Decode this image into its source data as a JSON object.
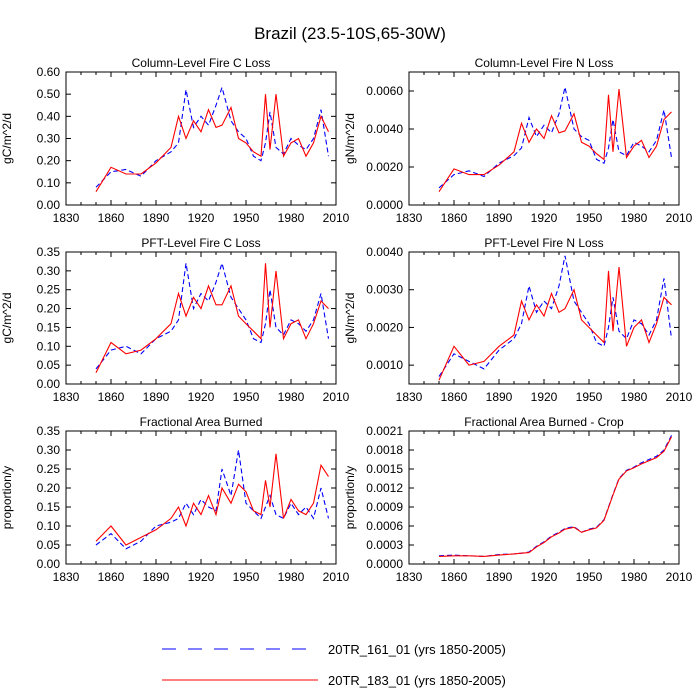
{
  "figure_title": "Brazil (23.5-10S,65-30W)",
  "colors": {
    "series_a": "#0000ff",
    "series_b": "#ff0000",
    "axis": "#000000"
  },
  "legend": [
    {
      "label": "20TR_161_01 (yrs 1850-2005)",
      "style": "dashed",
      "color": "#0000ff"
    },
    {
      "label": "20TR_183_01 (yrs 1850-2005)",
      "style": "solid",
      "color": "#ff0000"
    }
  ],
  "chart_data": [
    {
      "type": "line",
      "title": "Column-Level Fire C Loss",
      "ylabel": "gC/m^2/d",
      "xlim": [
        1830,
        2010
      ],
      "xticks": [
        "1830",
        "1860",
        "1890",
        "1920",
        "1950",
        "1980",
        "2010"
      ],
      "ylim": [
        0,
        0.6
      ],
      "yticks": [
        "0.00",
        "0.10",
        "0.20",
        "0.30",
        "0.40",
        "0.50",
        "0.60"
      ],
      "x": [
        1850,
        1860,
        1870,
        1880,
        1890,
        1900,
        1905,
        1910,
        1915,
        1920,
        1925,
        1930,
        1934,
        1940,
        1945,
        1950,
        1955,
        1960,
        1963,
        1966,
        1970,
        1975,
        1980,
        1985,
        1990,
        1995,
        2000,
        2005
      ],
      "series": [
        {
          "name": "20TR_161_01 (yrs 1850-2005)",
          "values": [
            0.08,
            0.15,
            0.16,
            0.13,
            0.2,
            0.24,
            0.28,
            0.52,
            0.35,
            0.4,
            0.36,
            0.45,
            0.53,
            0.38,
            0.33,
            0.3,
            0.22,
            0.2,
            0.28,
            0.42,
            0.26,
            0.23,
            0.3,
            0.27,
            0.25,
            0.3,
            0.43,
            0.22
          ]
        },
        {
          "name": "20TR_183_01 (yrs 1850-2005)",
          "values": [
            0.06,
            0.17,
            0.14,
            0.14,
            0.19,
            0.26,
            0.4,
            0.3,
            0.38,
            0.33,
            0.43,
            0.35,
            0.36,
            0.44,
            0.3,
            0.28,
            0.24,
            0.22,
            0.5,
            0.25,
            0.5,
            0.22,
            0.28,
            0.3,
            0.22,
            0.28,
            0.4,
            0.33
          ]
        }
      ]
    },
    {
      "type": "line",
      "title": "Column-Level Fire N Loss",
      "ylabel": "gN/m^2/d",
      "xlim": [
        1830,
        2010
      ],
      "xticks": [
        "1830",
        "1860",
        "1890",
        "1920",
        "1950",
        "1980",
        "2010"
      ],
      "ylim": [
        0,
        0.007
      ],
      "yticks": [
        "0.0000",
        "0.0020",
        "0.0040",
        "0.0060"
      ],
      "ytick_values": [
        0,
        0.002,
        0.004,
        0.006
      ],
      "x": [
        1850,
        1860,
        1870,
        1880,
        1890,
        1900,
        1905,
        1910,
        1915,
        1920,
        1925,
        1930,
        1934,
        1940,
        1945,
        1950,
        1955,
        1960,
        1963,
        1966,
        1970,
        1975,
        1980,
        1985,
        1990,
        1995,
        2000,
        2005
      ],
      "series": [
        {
          "name": "20TR_161_01 (yrs 1850-2005)",
          "values": [
            0.0009,
            0.0016,
            0.0018,
            0.0015,
            0.0022,
            0.0026,
            0.003,
            0.0046,
            0.0036,
            0.0042,
            0.0038,
            0.0048,
            0.0062,
            0.004,
            0.0036,
            0.0034,
            0.0024,
            0.0022,
            0.003,
            0.0045,
            0.0028,
            0.0026,
            0.0033,
            0.0031,
            0.0028,
            0.0034,
            0.005,
            0.0025
          ]
        },
        {
          "name": "20TR_183_01 (yrs 1850-2005)",
          "values": [
            0.0007,
            0.0019,
            0.0016,
            0.0016,
            0.0021,
            0.0028,
            0.0043,
            0.0033,
            0.004,
            0.0035,
            0.0047,
            0.0038,
            0.0039,
            0.0048,
            0.0033,
            0.0031,
            0.0027,
            0.0024,
            0.0058,
            0.0028,
            0.0061,
            0.0025,
            0.0031,
            0.0034,
            0.0025,
            0.0031,
            0.0045,
            0.0049
          ]
        }
      ]
    },
    {
      "type": "line",
      "title": "PFT-Level Fire C Loss",
      "ylabel": "gC/m^2/d",
      "xlim": [
        1830,
        2010
      ],
      "xticks": [
        "1830",
        "1860",
        "1890",
        "1920",
        "1950",
        "1980",
        "2010"
      ],
      "ylim": [
        0,
        0.35
      ],
      "yticks": [
        "0.00",
        "0.05",
        "0.10",
        "0.15",
        "0.20",
        "0.25",
        "0.30",
        "0.35"
      ],
      "x": [
        1850,
        1860,
        1870,
        1880,
        1890,
        1900,
        1905,
        1910,
        1915,
        1920,
        1925,
        1930,
        1934,
        1940,
        1945,
        1950,
        1955,
        1960,
        1963,
        1966,
        1970,
        1975,
        1980,
        1985,
        1990,
        1995,
        2000,
        2005
      ],
      "series": [
        {
          "name": "20TR_161_01 (yrs 1850-2005)",
          "values": [
            0.04,
            0.09,
            0.1,
            0.08,
            0.12,
            0.14,
            0.17,
            0.32,
            0.2,
            0.24,
            0.22,
            0.27,
            0.32,
            0.23,
            0.2,
            0.17,
            0.12,
            0.11,
            0.16,
            0.25,
            0.15,
            0.13,
            0.17,
            0.16,
            0.14,
            0.17,
            0.24,
            0.12
          ]
        },
        {
          "name": "20TR_183_01 (yrs 1850-2005)",
          "values": [
            0.03,
            0.11,
            0.08,
            0.09,
            0.12,
            0.16,
            0.24,
            0.18,
            0.23,
            0.2,
            0.26,
            0.21,
            0.21,
            0.26,
            0.18,
            0.16,
            0.14,
            0.12,
            0.32,
            0.15,
            0.3,
            0.12,
            0.16,
            0.17,
            0.12,
            0.16,
            0.22,
            0.2
          ]
        }
      ]
    },
    {
      "type": "line",
      "title": "PFT-Level Fire N Loss",
      "ylabel": "gN/m^2/d",
      "xlim": [
        1830,
        2010
      ],
      "xticks": [
        "1830",
        "1860",
        "1890",
        "1920",
        "1950",
        "1980",
        "2010"
      ],
      "ylim": [
        0.0005,
        0.004
      ],
      "yticks": [
        "0.0010",
        "0.0020",
        "0.0030",
        "0.0040"
      ],
      "ytick_values": [
        0.001,
        0.002,
        0.003,
        0.004
      ],
      "x": [
        1850,
        1860,
        1870,
        1880,
        1890,
        1900,
        1905,
        1910,
        1915,
        1920,
        1925,
        1930,
        1934,
        1940,
        1945,
        1950,
        1955,
        1960,
        1963,
        1966,
        1970,
        1975,
        1980,
        1985,
        1990,
        1995,
        2000,
        2005
      ],
      "series": [
        {
          "name": "20TR_161_01 (yrs 1850-2005)",
          "values": [
            0.0007,
            0.0013,
            0.0011,
            0.0009,
            0.0014,
            0.0017,
            0.0021,
            0.0031,
            0.0024,
            0.0027,
            0.0025,
            0.0031,
            0.0039,
            0.0027,
            0.0024,
            0.0021,
            0.0016,
            0.0015,
            0.002,
            0.0028,
            0.0019,
            0.0017,
            0.0022,
            0.0021,
            0.0018,
            0.0022,
            0.0033,
            0.0017
          ]
        },
        {
          "name": "20TR_183_01 (yrs 1850-2005)",
          "values": [
            0.0006,
            0.0015,
            0.001,
            0.0011,
            0.0015,
            0.0018,
            0.0027,
            0.0022,
            0.0026,
            0.0023,
            0.0029,
            0.0024,
            0.0025,
            0.003,
            0.0022,
            0.002,
            0.0018,
            0.0016,
            0.0035,
            0.0019,
            0.0036,
            0.0015,
            0.002,
            0.0022,
            0.0016,
            0.0021,
            0.0028,
            0.0026
          ]
        }
      ]
    },
    {
      "type": "line",
      "title": "Fractional Area Burned",
      "ylabel": "proportion/y",
      "xlim": [
        1830,
        2010
      ],
      "xticks": [
        "1830",
        "1860",
        "1890",
        "1920",
        "1950",
        "1980",
        "2010"
      ],
      "ylim": [
        0,
        0.35
      ],
      "yticks": [
        "0.00",
        "0.05",
        "0.10",
        "0.15",
        "0.20",
        "0.25",
        "0.30",
        "0.35"
      ],
      "x": [
        1850,
        1860,
        1870,
        1880,
        1890,
        1900,
        1905,
        1910,
        1915,
        1920,
        1925,
        1930,
        1934,
        1940,
        1945,
        1950,
        1955,
        1960,
        1963,
        1966,
        1970,
        1975,
        1980,
        1985,
        1990,
        1995,
        2000,
        2005
      ],
      "series": [
        {
          "name": "20TR_161_01 (yrs 1850-2005)",
          "values": [
            0.05,
            0.08,
            0.04,
            0.06,
            0.1,
            0.11,
            0.12,
            0.16,
            0.13,
            0.17,
            0.15,
            0.14,
            0.25,
            0.18,
            0.3,
            0.16,
            0.14,
            0.12,
            0.15,
            0.18,
            0.13,
            0.12,
            0.16,
            0.13,
            0.15,
            0.12,
            0.2,
            0.12
          ]
        },
        {
          "name": "20TR_183_01 (yrs 1850-2005)",
          "values": [
            0.06,
            0.1,
            0.05,
            0.07,
            0.09,
            0.12,
            0.15,
            0.1,
            0.16,
            0.13,
            0.18,
            0.13,
            0.2,
            0.16,
            0.21,
            0.19,
            0.14,
            0.13,
            0.22,
            0.15,
            0.29,
            0.12,
            0.17,
            0.14,
            0.13,
            0.16,
            0.26,
            0.23
          ]
        }
      ]
    },
    {
      "type": "line",
      "title": "Fractional Area Burned - Crop",
      "ylabel": "proportion/y",
      "xlim": [
        1830,
        2010
      ],
      "xticks": [
        "1830",
        "1860",
        "1890",
        "1920",
        "1950",
        "1980",
        "2010"
      ],
      "ylim": [
        0,
        0.0021
      ],
      "yticks": [
        "0.0000",
        "0.0003",
        "0.0006",
        "0.0009",
        "0.0012",
        "0.0015",
        "0.0018",
        "0.0021"
      ],
      "x": [
        1850,
        1860,
        1870,
        1880,
        1890,
        1900,
        1905,
        1910,
        1915,
        1920,
        1925,
        1930,
        1934,
        1940,
        1945,
        1950,
        1955,
        1960,
        1963,
        1966,
        1970,
        1975,
        1980,
        1985,
        1990,
        1995,
        2000,
        2005
      ],
      "series": [
        {
          "name": "20TR_161_01 (yrs 1850-2005)",
          "values": [
            0.00013,
            0.00014,
            0.00013,
            0.00012,
            0.00015,
            0.00016,
            0.00017,
            0.00019,
            0.00028,
            0.00035,
            0.00044,
            0.0005,
            0.00056,
            0.00059,
            0.0005,
            0.00055,
            0.00058,
            0.0007,
            0.0009,
            0.0011,
            0.00135,
            0.00148,
            0.00153,
            0.0016,
            0.00165,
            0.0017,
            0.0018,
            0.00203
          ]
        },
        {
          "name": "20TR_183_01 (yrs 1850-2005)",
          "values": [
            0.00012,
            0.00013,
            0.00013,
            0.00012,
            0.00014,
            0.00016,
            0.00017,
            0.00018,
            0.00027,
            0.00034,
            0.00043,
            0.00049,
            0.00055,
            0.00058,
            0.0005,
            0.00054,
            0.00057,
            0.00069,
            0.00089,
            0.00109,
            0.00134,
            0.00147,
            0.00152,
            0.00158,
            0.00163,
            0.00168,
            0.00178,
            0.00201
          ]
        }
      ]
    }
  ]
}
